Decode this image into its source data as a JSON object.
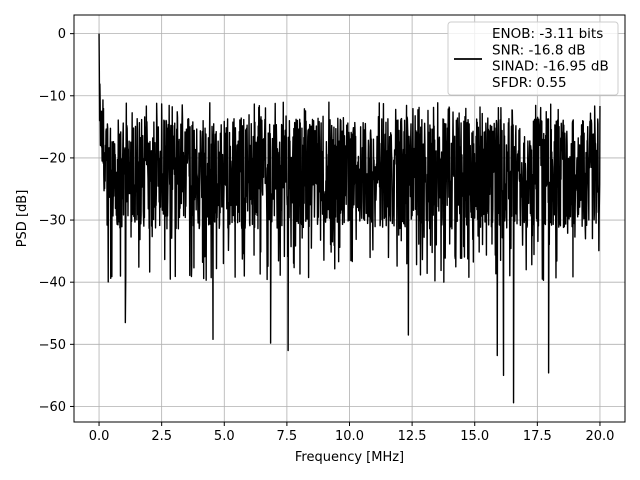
{
  "chart_data": {
    "type": "line",
    "title": "",
    "xlabel": "Frequency [MHz]",
    "ylabel": "PSD [dB]",
    "xlim": [
      -1.0,
      21.0
    ],
    "ylim": [
      -62.5,
      3.0
    ],
    "x_ticks": [
      0.0,
      2.5,
      5.0,
      7.5,
      10.0,
      12.5,
      15.0,
      17.5,
      20.0
    ],
    "x_tick_labels": [
      "0.0",
      "2.5",
      "5.0",
      "7.5",
      "10.0",
      "12.5",
      "15.0",
      "17.5",
      "20.0"
    ],
    "y_ticks": [
      0,
      -10,
      -20,
      -30,
      -40,
      -50,
      -60
    ],
    "y_tick_labels": [
      "0",
      "−10",
      "−20",
      "−30",
      "−40",
      "−50",
      "−60"
    ],
    "grid": true,
    "legend_position": "top-right",
    "series": [
      {
        "color": "#000000",
        "description": "noisy PSD trace starting near 0 dB at 0 MHz, fluctuating mostly between about -13 and -30 dB up to 20 MHz, with deep dips",
        "peak": {
          "x": 0.0,
          "y": 0.0
        },
        "x_range": [
          0.0,
          20.0
        ],
        "band_upper": -13,
        "band_lower": -30,
        "dips": [
          {
            "x": 1.05,
            "y": -46.5
          },
          {
            "x": 4.55,
            "y": -49.2
          },
          {
            "x": 6.85,
            "y": -49.8
          },
          {
            "x": 7.55,
            "y": -51.0
          },
          {
            "x": 12.35,
            "y": -48.5
          },
          {
            "x": 15.9,
            "y": -51.8
          },
          {
            "x": 16.15,
            "y": -55.0
          },
          {
            "x": 16.55,
            "y": -59.4
          },
          {
            "x": 17.95,
            "y": -54.6
          }
        ]
      }
    ],
    "legend_lines": [
      "ENOB: -3.11 bits",
      "SNR: -16.8 dB",
      "SINAD: -16.95 dB",
      "SFDR: 0.55"
    ]
  }
}
